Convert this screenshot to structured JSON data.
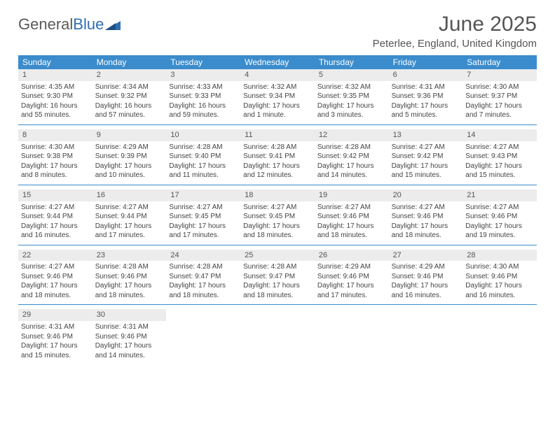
{
  "logo": {
    "text1": "General",
    "text2": "Blue"
  },
  "title": "June 2025",
  "location": "Peterlee, England, United Kingdom",
  "header_bg": "#3b8ccc",
  "header_fg": "#ffffff",
  "daynum_bg": "#ececec",
  "rule_color": "#3b8ccc",
  "day_names": [
    "Sunday",
    "Monday",
    "Tuesday",
    "Wednesday",
    "Thursday",
    "Friday",
    "Saturday"
  ],
  "weeks": [
    [
      {
        "n": "1",
        "sr": "Sunrise: 4:35 AM",
        "ss": "Sunset: 9:30 PM",
        "dl": "Daylight: 16 hours and 55 minutes."
      },
      {
        "n": "2",
        "sr": "Sunrise: 4:34 AM",
        "ss": "Sunset: 9:32 PM",
        "dl": "Daylight: 16 hours and 57 minutes."
      },
      {
        "n": "3",
        "sr": "Sunrise: 4:33 AM",
        "ss": "Sunset: 9:33 PM",
        "dl": "Daylight: 16 hours and 59 minutes."
      },
      {
        "n": "4",
        "sr": "Sunrise: 4:32 AM",
        "ss": "Sunset: 9:34 PM",
        "dl": "Daylight: 17 hours and 1 minute."
      },
      {
        "n": "5",
        "sr": "Sunrise: 4:32 AM",
        "ss": "Sunset: 9:35 PM",
        "dl": "Daylight: 17 hours and 3 minutes."
      },
      {
        "n": "6",
        "sr": "Sunrise: 4:31 AM",
        "ss": "Sunset: 9:36 PM",
        "dl": "Daylight: 17 hours and 5 minutes."
      },
      {
        "n": "7",
        "sr": "Sunrise: 4:30 AM",
        "ss": "Sunset: 9:37 PM",
        "dl": "Daylight: 17 hours and 7 minutes."
      }
    ],
    [
      {
        "n": "8",
        "sr": "Sunrise: 4:30 AM",
        "ss": "Sunset: 9:38 PM",
        "dl": "Daylight: 17 hours and 8 minutes."
      },
      {
        "n": "9",
        "sr": "Sunrise: 4:29 AM",
        "ss": "Sunset: 9:39 PM",
        "dl": "Daylight: 17 hours and 10 minutes."
      },
      {
        "n": "10",
        "sr": "Sunrise: 4:28 AM",
        "ss": "Sunset: 9:40 PM",
        "dl": "Daylight: 17 hours and 11 minutes."
      },
      {
        "n": "11",
        "sr": "Sunrise: 4:28 AM",
        "ss": "Sunset: 9:41 PM",
        "dl": "Daylight: 17 hours and 12 minutes."
      },
      {
        "n": "12",
        "sr": "Sunrise: 4:28 AM",
        "ss": "Sunset: 9:42 PM",
        "dl": "Daylight: 17 hours and 14 minutes."
      },
      {
        "n": "13",
        "sr": "Sunrise: 4:27 AM",
        "ss": "Sunset: 9:42 PM",
        "dl": "Daylight: 17 hours and 15 minutes."
      },
      {
        "n": "14",
        "sr": "Sunrise: 4:27 AM",
        "ss": "Sunset: 9:43 PM",
        "dl": "Daylight: 17 hours and 15 minutes."
      }
    ],
    [
      {
        "n": "15",
        "sr": "Sunrise: 4:27 AM",
        "ss": "Sunset: 9:44 PM",
        "dl": "Daylight: 17 hours and 16 minutes."
      },
      {
        "n": "16",
        "sr": "Sunrise: 4:27 AM",
        "ss": "Sunset: 9:44 PM",
        "dl": "Daylight: 17 hours and 17 minutes."
      },
      {
        "n": "17",
        "sr": "Sunrise: 4:27 AM",
        "ss": "Sunset: 9:45 PM",
        "dl": "Daylight: 17 hours and 17 minutes."
      },
      {
        "n": "18",
        "sr": "Sunrise: 4:27 AM",
        "ss": "Sunset: 9:45 PM",
        "dl": "Daylight: 17 hours and 18 minutes."
      },
      {
        "n": "19",
        "sr": "Sunrise: 4:27 AM",
        "ss": "Sunset: 9:46 PM",
        "dl": "Daylight: 17 hours and 18 minutes."
      },
      {
        "n": "20",
        "sr": "Sunrise: 4:27 AM",
        "ss": "Sunset: 9:46 PM",
        "dl": "Daylight: 17 hours and 18 minutes."
      },
      {
        "n": "21",
        "sr": "Sunrise: 4:27 AM",
        "ss": "Sunset: 9:46 PM",
        "dl": "Daylight: 17 hours and 19 minutes."
      }
    ],
    [
      {
        "n": "22",
        "sr": "Sunrise: 4:27 AM",
        "ss": "Sunset: 9:46 PM",
        "dl": "Daylight: 17 hours and 18 minutes."
      },
      {
        "n": "23",
        "sr": "Sunrise: 4:28 AM",
        "ss": "Sunset: 9:46 PM",
        "dl": "Daylight: 17 hours and 18 minutes."
      },
      {
        "n": "24",
        "sr": "Sunrise: 4:28 AM",
        "ss": "Sunset: 9:47 PM",
        "dl": "Daylight: 17 hours and 18 minutes."
      },
      {
        "n": "25",
        "sr": "Sunrise: 4:28 AM",
        "ss": "Sunset: 9:47 PM",
        "dl": "Daylight: 17 hours and 18 minutes."
      },
      {
        "n": "26",
        "sr": "Sunrise: 4:29 AM",
        "ss": "Sunset: 9:46 PM",
        "dl": "Daylight: 17 hours and 17 minutes."
      },
      {
        "n": "27",
        "sr": "Sunrise: 4:29 AM",
        "ss": "Sunset: 9:46 PM",
        "dl": "Daylight: 17 hours and 16 minutes."
      },
      {
        "n": "28",
        "sr": "Sunrise: 4:30 AM",
        "ss": "Sunset: 9:46 PM",
        "dl": "Daylight: 17 hours and 16 minutes."
      }
    ],
    [
      {
        "n": "29",
        "sr": "Sunrise: 4:31 AM",
        "ss": "Sunset: 9:46 PM",
        "dl": "Daylight: 17 hours and 15 minutes."
      },
      {
        "n": "30",
        "sr": "Sunrise: 4:31 AM",
        "ss": "Sunset: 9:46 PM",
        "dl": "Daylight: 17 hours and 14 minutes."
      },
      {
        "empty": true
      },
      {
        "empty": true
      },
      {
        "empty": true
      },
      {
        "empty": true
      },
      {
        "empty": true
      }
    ]
  ]
}
